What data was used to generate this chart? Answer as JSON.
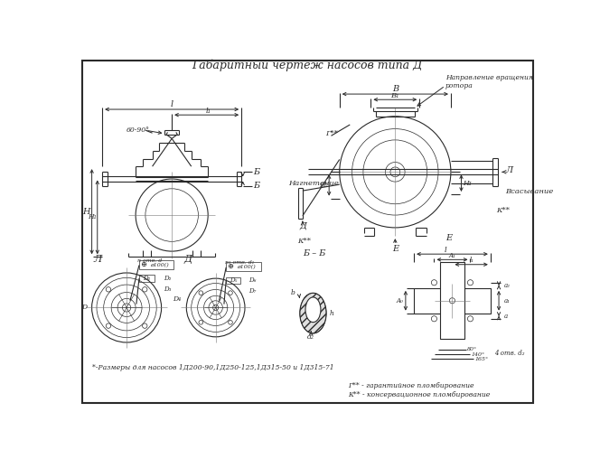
{
  "title": "Габаритный чертеж насосов типа Д",
  "bg_color": "#ffffff",
  "line_color": "#2a2a2a",
  "footnote": "*-Размеры для насосов 1Д200-90,1Д250-125,1Д315-50 и 1Д315-71",
  "note1": "Г** - гарантийное пломбирование",
  "note2": "К** - консервационное пломбирование",
  "note3": "Направление вращения\nротора"
}
